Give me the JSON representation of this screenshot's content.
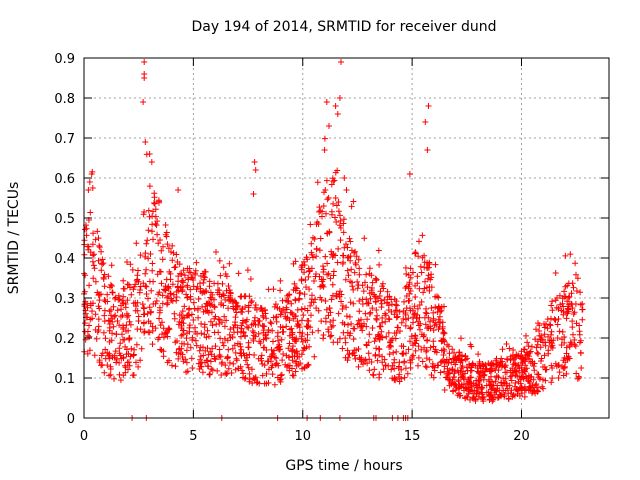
{
  "chart_data": {
    "type": "scatter",
    "title": "Day 194 of 2014, SRMTID for receiver dund",
    "xlabel": "GPS time / hours",
    "ylabel": "SRMTID / TECUs",
    "xlim": [
      0,
      24
    ],
    "ylim": [
      0,
      0.9
    ],
    "x_ticks": [
      0,
      5,
      10,
      15,
      20
    ],
    "x_tick_labels": [
      "0",
      "5",
      "10",
      "15",
      "20"
    ],
    "y_ticks": [
      0,
      0.1,
      0.2,
      0.3,
      0.4,
      0.5,
      0.6,
      0.7,
      0.8,
      0.9
    ],
    "y_tick_labels": [
      "0",
      "0.1",
      "0.2",
      "0.3",
      "0.4",
      "0.5",
      "0.6",
      "0.7",
      "0.8",
      "0.9"
    ],
    "grid": true,
    "marker": "+",
    "color": "#ff0000",
    "x_end": 22.8,
    "baseline_level": [
      [
        0.0,
        0.3
      ],
      [
        0.3,
        0.38
      ],
      [
        0.6,
        0.3
      ],
      [
        1.0,
        0.24
      ],
      [
        1.5,
        0.2
      ],
      [
        2.0,
        0.22
      ],
      [
        2.5,
        0.24
      ],
      [
        2.8,
        0.36
      ],
      [
        3.2,
        0.38
      ],
      [
        3.6,
        0.34
      ],
      [
        4.0,
        0.28
      ],
      [
        4.5,
        0.25
      ],
      [
        5.0,
        0.24
      ],
      [
        5.5,
        0.24
      ],
      [
        6.0,
        0.22
      ],
      [
        6.5,
        0.24
      ],
      [
        7.0,
        0.2
      ],
      [
        7.5,
        0.2
      ],
      [
        8.0,
        0.18
      ],
      [
        8.5,
        0.17
      ],
      [
        9.0,
        0.2
      ],
      [
        9.5,
        0.22
      ],
      [
        10.0,
        0.25
      ],
      [
        10.5,
        0.3
      ],
      [
        11.0,
        0.38
      ],
      [
        11.5,
        0.42
      ],
      [
        12.0,
        0.32
      ],
      [
        12.5,
        0.27
      ],
      [
        13.0,
        0.25
      ],
      [
        13.5,
        0.22
      ],
      [
        14.0,
        0.2
      ],
      [
        14.5,
        0.18
      ],
      [
        15.0,
        0.26
      ],
      [
        15.5,
        0.3
      ],
      [
        16.0,
        0.22
      ],
      [
        16.5,
        0.14
      ],
      [
        17.0,
        0.11
      ],
      [
        17.5,
        0.1
      ],
      [
        18.0,
        0.09
      ],
      [
        18.5,
        0.09
      ],
      [
        19.0,
        0.1
      ],
      [
        19.5,
        0.1
      ],
      [
        20.0,
        0.11
      ],
      [
        20.5,
        0.12
      ],
      [
        21.0,
        0.15
      ],
      [
        21.5,
        0.2
      ],
      [
        22.0,
        0.22
      ],
      [
        22.5,
        0.22
      ],
      [
        22.8,
        0.2
      ]
    ],
    "notable_points": [
      {
        "x": 2.75,
        "y": 0.89
      },
      {
        "x": 2.75,
        "y": 0.86
      },
      {
        "x": 2.75,
        "y": 0.85
      },
      {
        "x": 2.7,
        "y": 0.79
      },
      {
        "x": 2.8,
        "y": 0.69
      },
      {
        "x": 3.0,
        "y": 0.66
      },
      {
        "x": 3.1,
        "y": 0.64
      },
      {
        "x": 11.75,
        "y": 0.89
      },
      {
        "x": 11.7,
        "y": 0.8
      },
      {
        "x": 11.1,
        "y": 0.79
      },
      {
        "x": 11.5,
        "y": 0.78
      },
      {
        "x": 11.6,
        "y": 0.76
      },
      {
        "x": 11.2,
        "y": 0.73
      },
      {
        "x": 11.0,
        "y": 0.67
      },
      {
        "x": 11.9,
        "y": 0.6
      },
      {
        "x": 15.75,
        "y": 0.78
      },
      {
        "x": 15.6,
        "y": 0.74
      },
      {
        "x": 15.7,
        "y": 0.67
      },
      {
        "x": 14.9,
        "y": 0.61
      },
      {
        "x": 7.8,
        "y": 0.64
      },
      {
        "x": 7.85,
        "y": 0.62
      },
      {
        "x": 7.75,
        "y": 0.56
      },
      {
        "x": 0.35,
        "y": 0.61
      },
      {
        "x": 0.2,
        "y": 0.57
      },
      {
        "x": 4.3,
        "y": 0.57
      },
      {
        "x": 12.0,
        "y": 0.57
      }
    ],
    "zero_points_x": [
      2.2,
      2.85,
      6.3,
      8.85,
      10.2,
      10.8,
      11.7,
      13.25,
      13.35,
      14.1,
      14.35,
      14.6,
      14.7,
      14.8
    ]
  }
}
